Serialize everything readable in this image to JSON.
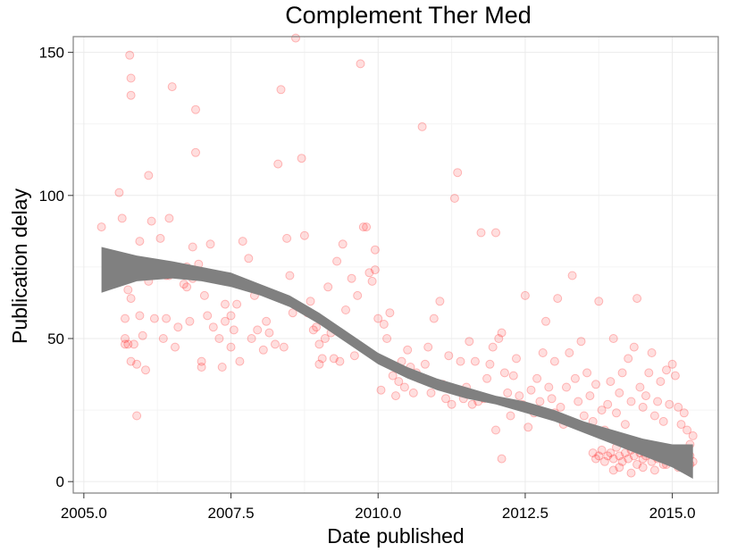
{
  "chart_data": {
    "type": "scatter",
    "title": "Complement Ther Med",
    "xlabel": "Date published",
    "ylabel": "Publication delay",
    "xlim": [
      2004.82,
      2015.78
    ],
    "ylim": [
      -4,
      155.5
    ],
    "xticks": [
      2005.0,
      2007.5,
      2010.0,
      2012.5,
      2015.0
    ],
    "xtick_labels": [
      "2005.0",
      "2007.5",
      "2010.0",
      "2012.5",
      "2015.0"
    ],
    "yticks": [
      0,
      50,
      100,
      150
    ],
    "ytick_labels": [
      "0",
      "50",
      "100",
      "150"
    ],
    "grid": true,
    "legend": "none",
    "colors": {
      "points": "#ff0000",
      "band": "#808080",
      "grid": "#ebebeb",
      "panel_border": "#7f7f7f"
    },
    "series": [
      {
        "type": "scatter",
        "points": [
          [
            2005.3,
            89
          ],
          [
            2005.6,
            101
          ],
          [
            2005.65,
            92
          ],
          [
            2005.7,
            57
          ],
          [
            2005.75,
            67
          ],
          [
            2005.7,
            50
          ],
          [
            2005.8,
            64
          ],
          [
            2005.75,
            48
          ],
          [
            2005.7,
            48
          ],
          [
            2005.78,
            149
          ],
          [
            2005.8,
            141
          ],
          [
            2005.8,
            135
          ],
          [
            2005.8,
            42
          ],
          [
            2005.9,
            23
          ],
          [
            2005.85,
            48
          ],
          [
            2005.95,
            84
          ],
          [
            2005.9,
            41
          ],
          [
            2005.95,
            58
          ],
          [
            2006.0,
            51
          ],
          [
            2006.05,
            39
          ],
          [
            2006.1,
            70
          ],
          [
            2006.1,
            107
          ],
          [
            2006.15,
            91
          ],
          [
            2006.2,
            57
          ],
          [
            2006.3,
            85
          ],
          [
            2006.35,
            50
          ],
          [
            2006.45,
            92
          ],
          [
            2006.4,
            72
          ],
          [
            2006.4,
            57
          ],
          [
            2006.45,
            72
          ],
          [
            2006.5,
            138
          ],
          [
            2006.55,
            74
          ],
          [
            2006.55,
            47
          ],
          [
            2006.6,
            54
          ],
          [
            2006.7,
            69
          ],
          [
            2006.75,
            75
          ],
          [
            2006.75,
            68
          ],
          [
            2006.8,
            56
          ],
          [
            2006.85,
            71
          ],
          [
            2006.85,
            82
          ],
          [
            2006.9,
            115
          ],
          [
            2006.9,
            130
          ],
          [
            2006.95,
            76
          ],
          [
            2007.0,
            40
          ],
          [
            2007.0,
            42
          ],
          [
            2007.05,
            65
          ],
          [
            2007.1,
            58
          ],
          [
            2007.15,
            83
          ],
          [
            2007.2,
            54
          ],
          [
            2007.3,
            50
          ],
          [
            2007.35,
            40
          ],
          [
            2007.4,
            62
          ],
          [
            2007.4,
            56
          ],
          [
            2007.5,
            47
          ],
          [
            2007.5,
            58
          ],
          [
            2007.55,
            53
          ],
          [
            2007.6,
            62
          ],
          [
            2007.65,
            42
          ],
          [
            2007.7,
            84
          ],
          [
            2007.8,
            78
          ],
          [
            2007.85,
            50
          ],
          [
            2007.9,
            65
          ],
          [
            2007.95,
            53
          ],
          [
            2008.05,
            46
          ],
          [
            2008.1,
            56
          ],
          [
            2008.15,
            52
          ],
          [
            2008.25,
            48
          ],
          [
            2008.3,
            111
          ],
          [
            2008.35,
            137
          ],
          [
            2008.4,
            47
          ],
          [
            2008.45,
            85
          ],
          [
            2008.5,
            72
          ],
          [
            2008.55,
            59
          ],
          [
            2008.6,
            155
          ],
          [
            2008.6,
            62
          ],
          [
            2008.7,
            113
          ],
          [
            2008.75,
            86
          ],
          [
            2008.8,
            59
          ],
          [
            2008.85,
            63
          ],
          [
            2008.9,
            53
          ],
          [
            2008.95,
            54
          ],
          [
            2009.0,
            48
          ],
          [
            2009.0,
            41
          ],
          [
            2009.05,
            43
          ],
          [
            2009.1,
            50
          ],
          [
            2009.15,
            68
          ],
          [
            2009.2,
            52
          ],
          [
            2009.25,
            43
          ],
          [
            2009.3,
            77
          ],
          [
            2009.35,
            42
          ],
          [
            2009.4,
            83
          ],
          [
            2009.45,
            60
          ],
          [
            2009.55,
            71
          ],
          [
            2009.6,
            44
          ],
          [
            2009.65,
            65
          ],
          [
            2009.7,
            146
          ],
          [
            2009.75,
            89
          ],
          [
            2009.8,
            89
          ],
          [
            2009.85,
            73
          ],
          [
            2009.9,
            70
          ],
          [
            2009.95,
            81
          ],
          [
            2009.95,
            74
          ],
          [
            2010.0,
            57
          ],
          [
            2010.05,
            32
          ],
          [
            2010.1,
            55
          ],
          [
            2010.15,
            50
          ],
          [
            2010.2,
            59
          ],
          [
            2010.25,
            37
          ],
          [
            2010.3,
            30
          ],
          [
            2010.35,
            35
          ],
          [
            2010.4,
            42
          ],
          [
            2010.45,
            33
          ],
          [
            2010.5,
            46
          ],
          [
            2010.55,
            40
          ],
          [
            2010.6,
            31
          ],
          [
            2010.65,
            38
          ],
          [
            2010.7,
            36
          ],
          [
            2010.75,
            124
          ],
          [
            2010.8,
            41
          ],
          [
            2010.85,
            47
          ],
          [
            2010.9,
            31
          ],
          [
            2010.95,
            57
          ],
          [
            2011.0,
            34
          ],
          [
            2011.05,
            63
          ],
          [
            2011.1,
            34
          ],
          [
            2011.15,
            29
          ],
          [
            2011.2,
            44
          ],
          [
            2011.25,
            27
          ],
          [
            2011.3,
            99
          ],
          [
            2011.35,
            108
          ],
          [
            2011.4,
            42
          ],
          [
            2011.45,
            29
          ],
          [
            2011.5,
            33
          ],
          [
            2011.55,
            49
          ],
          [
            2011.6,
            27
          ],
          [
            2011.65,
            42
          ],
          [
            2011.7,
            28
          ],
          [
            2011.75,
            87
          ],
          [
            2011.8,
            29
          ],
          [
            2011.85,
            36
          ],
          [
            2011.9,
            41
          ],
          [
            2011.95,
            47
          ],
          [
            2012.0,
            87
          ],
          [
            2012.0,
            18
          ],
          [
            2012.05,
            50
          ],
          [
            2012.1,
            8
          ],
          [
            2012.1,
            52
          ],
          [
            2012.15,
            38
          ],
          [
            2012.2,
            31
          ],
          [
            2012.25,
            23
          ],
          [
            2012.3,
            37
          ],
          [
            2012.35,
            43
          ],
          [
            2012.4,
            30
          ],
          [
            2012.45,
            27
          ],
          [
            2012.5,
            65
          ],
          [
            2012.55,
            19
          ],
          [
            2012.6,
            32
          ],
          [
            2012.65,
            24
          ],
          [
            2012.7,
            36
          ],
          [
            2012.75,
            28
          ],
          [
            2012.8,
            45
          ],
          [
            2012.85,
            56
          ],
          [
            2012.9,
            33
          ],
          [
            2012.95,
            29
          ],
          [
            2013.0,
            24
          ],
          [
            2013.0,
            42
          ],
          [
            2013.05,
            64
          ],
          [
            2013.1,
            26
          ],
          [
            2013.15,
            20
          ],
          [
            2013.2,
            33
          ],
          [
            2013.25,
            45
          ],
          [
            2013.3,
            72
          ],
          [
            2013.35,
            36
          ],
          [
            2013.4,
            28
          ],
          [
            2013.45,
            49
          ],
          [
            2013.5,
            23
          ],
          [
            2013.55,
            38
          ],
          [
            2013.6,
            30
          ],
          [
            2013.65,
            21
          ],
          [
            2013.7,
            34
          ],
          [
            2013.75,
            63
          ],
          [
            2013.8,
            25
          ],
          [
            2013.85,
            18
          ],
          [
            2013.9,
            27
          ],
          [
            2013.95,
            35
          ],
          [
            2014.0,
            50
          ],
          [
            2014.05,
            24
          ],
          [
            2014.1,
            31
          ],
          [
            2014.15,
            38
          ],
          [
            2014.2,
            20
          ],
          [
            2014.25,
            43
          ],
          [
            2014.3,
            28
          ],
          [
            2014.35,
            47
          ],
          [
            2014.4,
            64
          ],
          [
            2014.45,
            33
          ],
          [
            2014.5,
            26
          ],
          [
            2014.55,
            30
          ],
          [
            2014.6,
            38
          ],
          [
            2014.65,
            45
          ],
          [
            2014.7,
            23
          ],
          [
            2014.75,
            28
          ],
          [
            2014.8,
            35
          ],
          [
            2014.85,
            21
          ],
          [
            2014.9,
            39
          ],
          [
            2014.95,
            27
          ],
          [
            2015.0,
            41
          ],
          [
            2015.05,
            37
          ],
          [
            2015.1,
            26
          ],
          [
            2015.15,
            20
          ],
          [
            2015.2,
            24
          ],
          [
            2015.25,
            18
          ],
          [
            2015.3,
            13
          ],
          [
            2015.35,
            16
          ],
          [
            2013.65,
            10
          ],
          [
            2013.7,
            8
          ],
          [
            2013.75,
            9
          ],
          [
            2013.8,
            11
          ],
          [
            2013.85,
            7
          ],
          [
            2013.9,
            9
          ],
          [
            2013.95,
            10
          ],
          [
            2014.0,
            8
          ],
          [
            2014.05,
            12
          ],
          [
            2014.1,
            9
          ],
          [
            2014.15,
            7
          ],
          [
            2014.2,
            10
          ],
          [
            2014.25,
            8
          ],
          [
            2014.3,
            11
          ],
          [
            2014.35,
            9
          ],
          [
            2014.4,
            6
          ],
          [
            2014.45,
            10
          ],
          [
            2014.5,
            8
          ],
          [
            2014.55,
            9
          ],
          [
            2014.6,
            11
          ],
          [
            2014.65,
            7
          ],
          [
            2014.7,
            9
          ],
          [
            2014.75,
            8
          ],
          [
            2014.8,
            10
          ],
          [
            2014.85,
            6
          ],
          [
            2014.9,
            9
          ],
          [
            2014.95,
            11
          ],
          [
            2015.0,
            8
          ],
          [
            2015.05,
            7
          ],
          [
            2015.1,
            9
          ],
          [
            2015.15,
            10
          ],
          [
            2015.2,
            6
          ],
          [
            2015.25,
            8
          ],
          [
            2015.3,
            9
          ],
          [
            2015.35,
            7
          ],
          [
            2014.0,
            4
          ],
          [
            2014.1,
            5
          ],
          [
            2014.3,
            3
          ],
          [
            2014.5,
            5
          ],
          [
            2014.7,
            4
          ],
          [
            2014.9,
            6
          ],
          [
            2015.1,
            5
          ],
          [
            2015.3,
            6
          ]
        ]
      }
    ],
    "smooth_band": {
      "x": [
        2005.3,
        2005.9,
        2006.5,
        2007.0,
        2007.5,
        2008.0,
        2008.5,
        2009.0,
        2009.5,
        2010.0,
        2010.5,
        2011.0,
        2011.5,
        2012.0,
        2012.5,
        2013.0,
        2013.5,
        2014.0,
        2014.5,
        2015.0,
        2015.35
      ],
      "lower": [
        66,
        70,
        71,
        70,
        68,
        65,
        61,
        55,
        48,
        41,
        36,
        32,
        29,
        27,
        24,
        21,
        17,
        13,
        9,
        5,
        1
      ],
      "upper": [
        82,
        79,
        77,
        75,
        73,
        69,
        65,
        59,
        52,
        45,
        40,
        36,
        33,
        30,
        28,
        25,
        21,
        18,
        15,
        13,
        13
      ]
    }
  }
}
